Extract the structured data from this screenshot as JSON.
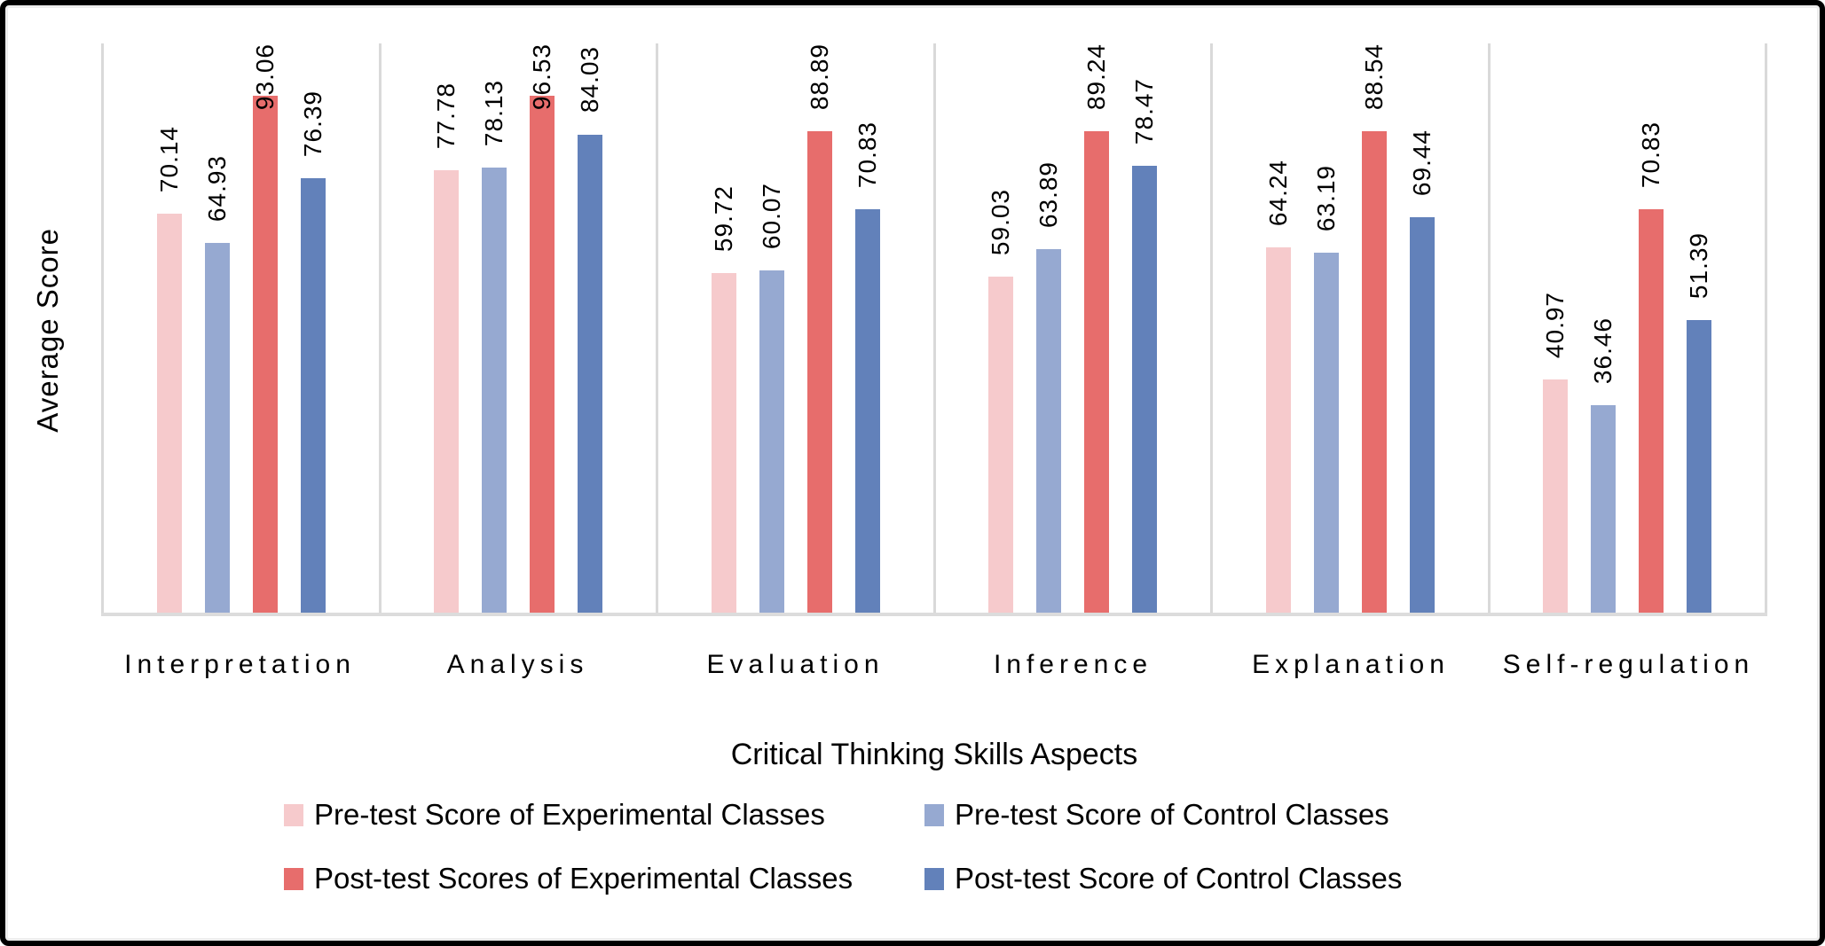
{
  "chart_data": {
    "type": "bar",
    "title": "",
    "ylabel": "Average Score",
    "xlabel": "Critical Thinking Skills Aspects",
    "ylim": [
      0,
      100
    ],
    "grid": "vertical panel separators between categories, no horizontal gridlines",
    "legend_position": "bottom, two rows, two columns",
    "value_label_style": "values rotated 90deg above each bar, 2 decimals",
    "categories": [
      "Interpretation",
      "Analysis",
      "Evaluation",
      "Inference",
      "Explanation",
      "Self-regulation"
    ],
    "series": [
      {
        "name": "Pre-test Score of Experimental Classes",
        "color": "#F6CACC",
        "values": [
          70.14,
          77.78,
          59.72,
          59.03,
          64.24,
          40.97
        ]
      },
      {
        "name": "Pre-test Score of Control Classes",
        "color": "#96A9D1",
        "values": [
          64.93,
          78.13,
          60.07,
          63.89,
          63.19,
          36.46
        ]
      },
      {
        "name": "Post-test Scores of Experimental Classes",
        "color": "#E76D6C",
        "values": [
          93.06,
          96.53,
          88.89,
          89.24,
          88.54,
          70.83
        ]
      },
      {
        "name": "Post-test Score of Control Classes",
        "color": "#6281BA",
        "values": [
          76.39,
          84.03,
          70.83,
          78.47,
          69.44,
          51.39
        ]
      }
    ],
    "axis_line_color": "#D9D9D9",
    "frame_border_color": "#000000",
    "inner_frame_line_color": "#EDEDED"
  }
}
